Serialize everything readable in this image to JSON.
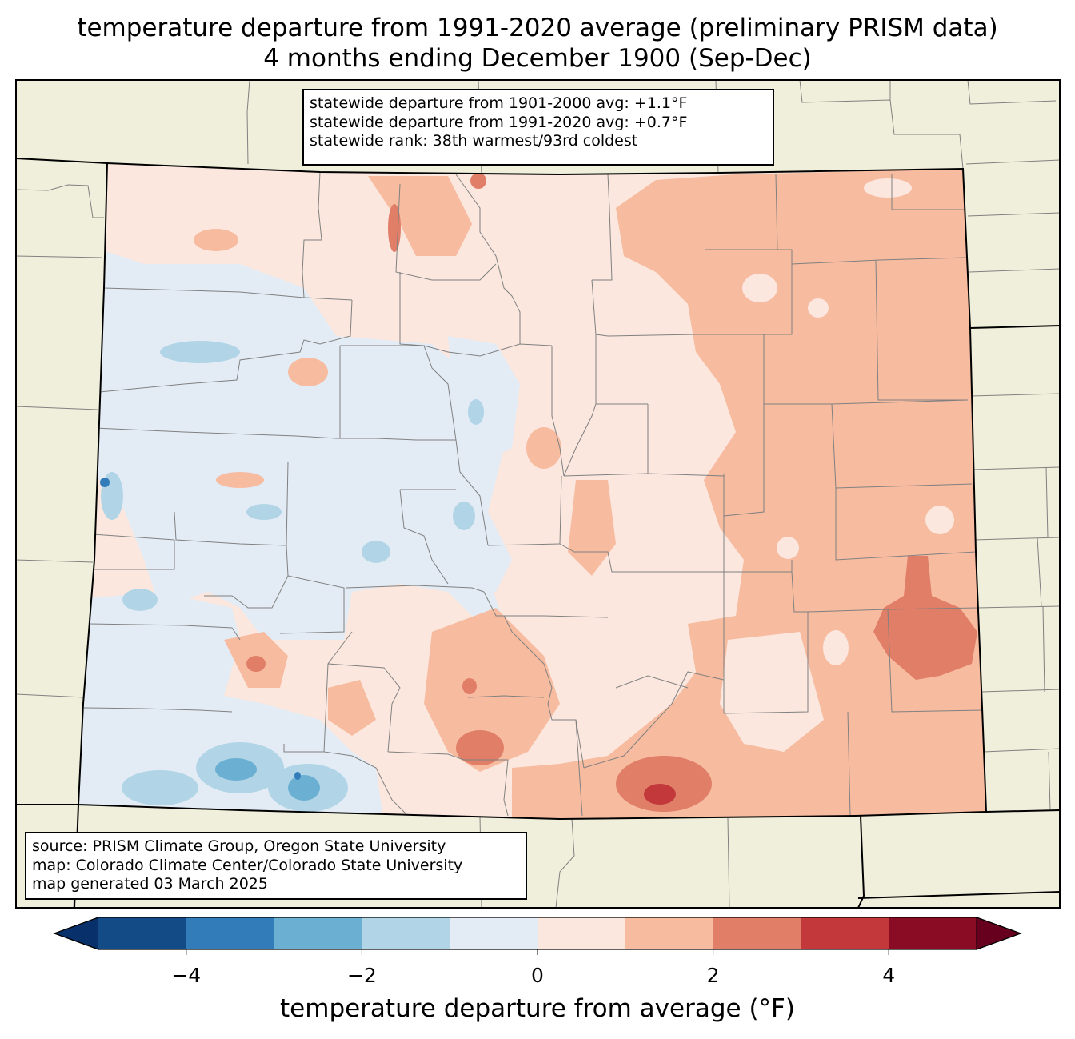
{
  "title": {
    "line1": "temperature departure from 1991-2020 average (preliminary PRISM data)",
    "line2": "4 months ending December 1900 (Sep-Dec)"
  },
  "stats": {
    "line1": "statewide departure from 1901-2000 avg: +1.1°F",
    "line2": "statewide departure from 1991-2020 avg: +0.7°F",
    "line3": "statewide rank: 38th warmest/93rd coldest"
  },
  "source": {
    "line1": "source: PRISM Climate Group, Oregon State University",
    "line2": "map: Colorado Climate Center/Colorado State University",
    "line3": "map generated 03 March 2025"
  },
  "colorbar": {
    "label": "temperature departure from average (°F)",
    "ticks": [
      "−4",
      "−2",
      "0",
      "2",
      "4"
    ],
    "tick_values": [
      -4,
      -2,
      0,
      2,
      4
    ],
    "range": [
      -5,
      5
    ],
    "step": 1,
    "extend": "both",
    "colors": {
      "under": "#08306b",
      "bins": [
        "#134b87",
        "#327cba",
        "#6bafd2",
        "#b1d5e7",
        "#e3ecf5",
        "#fbe7de",
        "#f7bba0",
        "#e07e68",
        "#c2383b",
        "#890c24"
      ],
      "over": "#67001f"
    }
  },
  "map_colors": {
    "background_land": "#f0efdc",
    "county_lines": "#808080",
    "state_borders": "#000000"
  }
}
